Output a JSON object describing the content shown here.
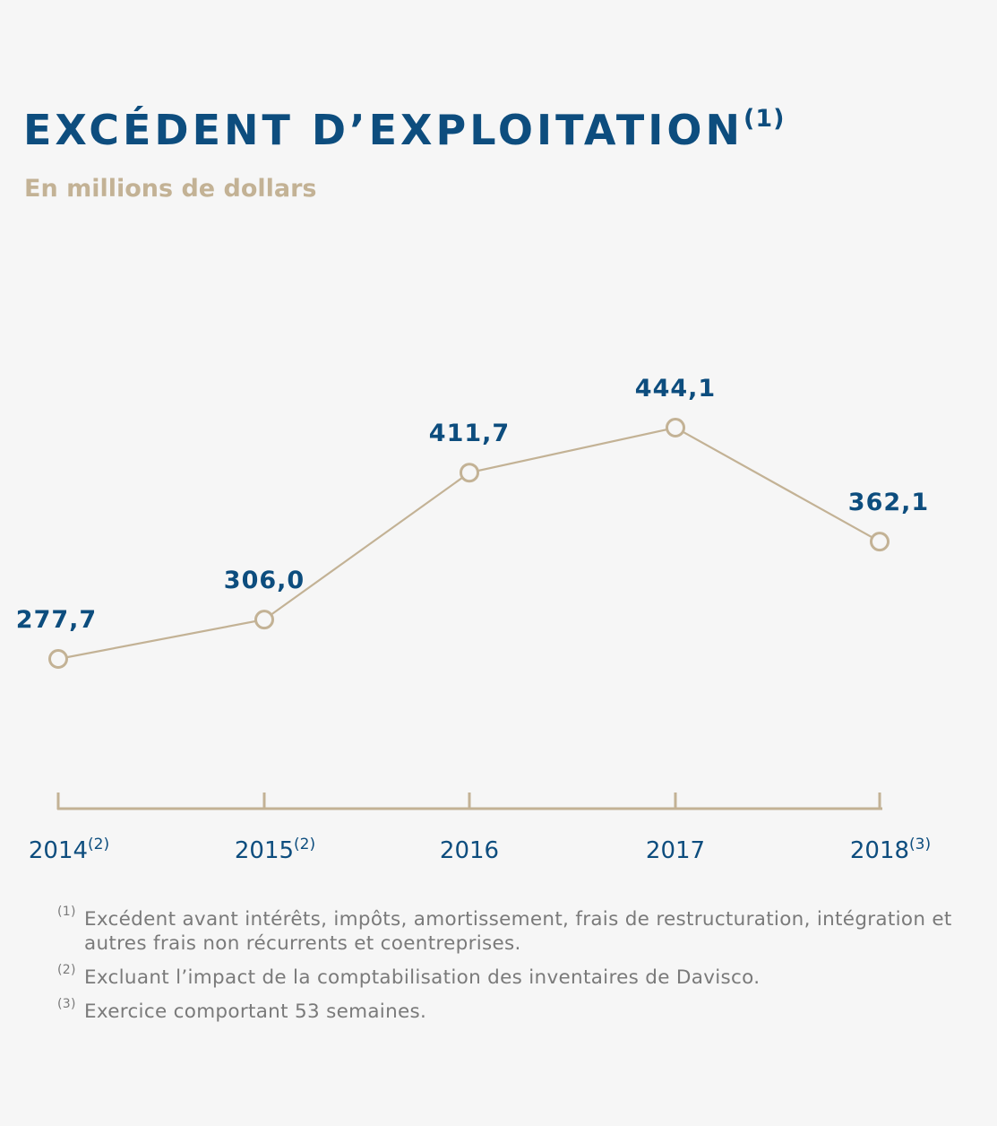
{
  "title": "EXCÉDENT D’EXPLOITATION",
  "title_note": "(1)",
  "subtitle": "En millions de dollars",
  "colors": {
    "accent": "#0d4d7e",
    "line": "#c3b295",
    "note_text": "#7a7a7a",
    "background": "#f6f6f6"
  },
  "chart_data": {
    "type": "line",
    "title": "EXCÉDENT D’EXPLOITATION",
    "subtitle": "En millions de dollars",
    "categories": [
      "2014",
      "2015",
      "2016",
      "2017",
      "2018"
    ],
    "category_notes": [
      "(2)",
      "(2)",
      "",
      "",
      "(3)"
    ],
    "values": [
      277.7,
      306.0,
      411.7,
      444.1,
      362.1
    ],
    "value_labels": [
      "277,7",
      "306,0",
      "411,7",
      "444,1",
      "362,1"
    ],
    "ylim": [
      200,
      480
    ],
    "grid": false,
    "markers": "hollow-circle"
  },
  "notes": [
    {
      "mark": "(1)",
      "text": "Excédent avant intérêts, impôts, amortissement, frais de restructuration, intégration et autres frais non récurrents et coentreprises."
    },
    {
      "mark": "(2)",
      "text": "Excluant l’impact de la comptabilisation des inventaires de Davisco."
    },
    {
      "mark": "(3)",
      "text": "Exercice comportant 53 semaines."
    }
  ]
}
